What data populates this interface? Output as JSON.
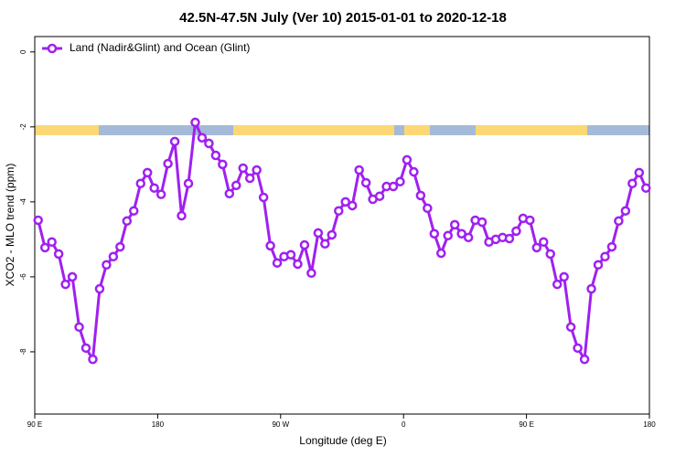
{
  "chart_data": {
    "type": "line",
    "title": "42.5N-47.5N July (Ver 10)   2015-01-01 to 2020-12-18",
    "x_label": "Longitude (deg E)",
    "y_label": "XCO2 - MLO trend (ppm)",
    "xlim": [
      90,
      540
    ],
    "xticks": [
      {
        "value": 90,
        "label": "90 E"
      },
      180,
      {
        "value": 270,
        "label": "90 W"
      },
      {
        "value": 360,
        "label": "0"
      },
      {
        "value": 450,
        "label": "90 E"
      },
      {
        "value": 540,
        "label": "180"
      }
    ],
    "ylim": [
      -9.66,
      0.41
    ],
    "yticks": [
      0,
      -2,
      -4,
      -6,
      -8
    ],
    "legend": "top-left",
    "series": [
      {
        "name": "Land (Nadir&Glint) and Ocean (Glint)",
        "color": "#a020f0",
        "x": [
          92.5,
          97.5,
          102.5,
          107.5,
          112.5,
          117.5,
          122.5,
          127.5,
          132.5,
          137.5,
          142.5,
          147.5,
          152.5,
          157.5,
          162.5,
          167.5,
          172.5,
          177.5,
          182.5,
          187.5,
          192.5,
          197.5,
          202.5,
          207.5,
          212.5,
          217.5,
          222.5,
          227.5,
          232.5,
          237.5,
          242.5,
          247.5,
          252.5,
          257.5,
          262.5,
          267.5,
          272.5,
          277.5,
          282.5,
          287.5,
          292.5,
          297.5,
          302.5,
          307.5,
          312.5,
          317.5,
          322.5,
          327.5,
          332.5,
          337.5,
          342.5,
          347.5,
          352.5,
          357.5,
          362.5,
          367.5,
          372.5,
          377.5,
          382.5,
          387.5,
          392.5,
          397.5,
          402.5,
          407.5,
          412.5,
          417.5,
          422.5,
          427.5,
          432.5,
          437.5,
          442.5,
          447.5,
          452.5,
          457.5,
          462.5,
          467.5,
          472.5,
          477.5,
          482.5,
          487.5,
          492.5,
          497.5,
          502.5,
          507.5,
          512.5,
          517.5,
          522.5,
          527.5,
          532.5,
          537.5
        ],
        "values": [
          -4.49,
          -5.22,
          -5.07,
          -5.39,
          -6.2,
          -6.0,
          -7.34,
          -7.9,
          -8.2,
          -6.32,
          -5.68,
          -5.46,
          -5.2,
          -4.51,
          -4.24,
          -3.51,
          -3.22,
          -3.63,
          -3.8,
          -2.98,
          -2.39,
          -4.37,
          -3.51,
          -1.88,
          -2.29,
          -2.44,
          -2.76,
          -3.0,
          -3.78,
          -3.56,
          -3.1,
          -3.37,
          -3.15,
          -3.88,
          -5.17,
          -5.63,
          -5.46,
          -5.41,
          -5.66,
          -5.15,
          -5.9,
          -4.83,
          -5.12,
          -4.88,
          -4.24,
          -4.0,
          -4.1,
          -3.15,
          -3.49,
          -3.93,
          -3.85,
          -3.59,
          -3.59,
          -3.46,
          -2.88,
          -3.2,
          -3.83,
          -4.17,
          -4.85,
          -5.37,
          -4.9,
          -4.61,
          -4.85,
          -4.95,
          -4.49,
          -4.54,
          -5.07,
          -5.0,
          -4.95,
          -4.98,
          -4.78,
          -4.44,
          -4.49,
          -5.22,
          -5.07,
          -5.39,
          -6.2,
          -6.0,
          -7.34,
          -7.9,
          -8.2,
          -6.32,
          -5.68,
          -5.46,
          -5.2,
          -4.51,
          -4.24,
          -3.51,
          -3.22,
          -3.63
        ]
      }
    ]
  }
}
